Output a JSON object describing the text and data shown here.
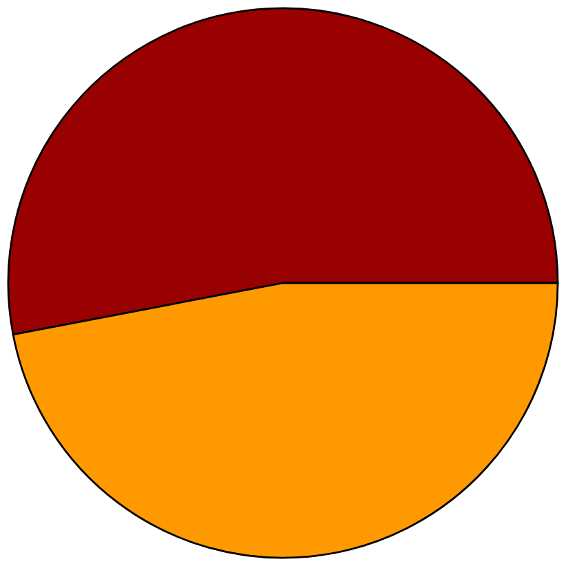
{
  "chart_data": {
    "type": "pie",
    "categories": [
      null,
      null
    ],
    "values": [
      53,
      47
    ],
    "colors": [
      "#990000",
      "#ff9900"
    ]
  }
}
